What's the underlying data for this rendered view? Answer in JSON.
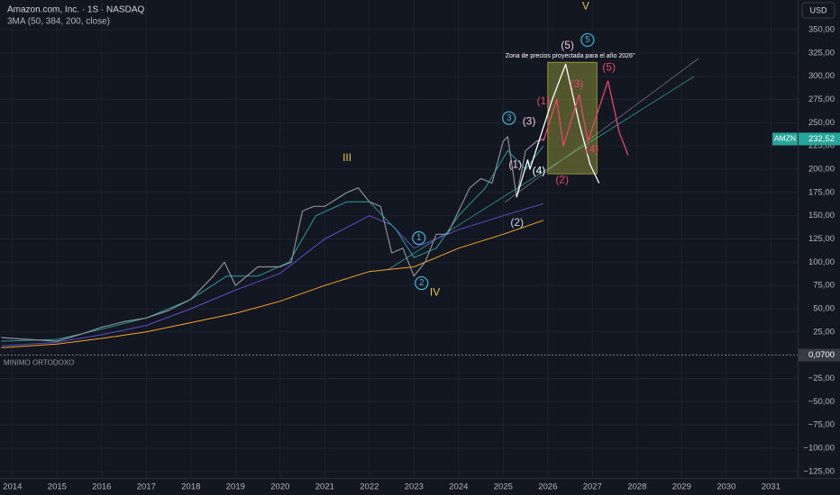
{
  "chart_data": {
    "type": "line",
    "title": "Amazon.com, Inc. · 1S · NASDAQ",
    "subtitle": "3MA (50, 384, 200, close)",
    "currency": "USD",
    "xlim": [
      2013.72,
      2031.6
    ],
    "ylim": [
      -132,
      382
    ],
    "xticks": [
      2014,
      2015,
      2016,
      2017,
      2018,
      2019,
      2020,
      2021,
      2022,
      2023,
      2024,
      2025,
      2026,
      2027,
      2028,
      2029,
      2030,
      2031
    ],
    "yticks": [
      {
        "value": 350,
        "label": "350,00"
      },
      {
        "value": 325,
        "label": "325,00"
      },
      {
        "value": 300,
        "label": "300,00"
      },
      {
        "value": 275,
        "label": "275,00"
      },
      {
        "value": 250,
        "label": "250,00"
      },
      {
        "value": 225,
        "label": "225,00"
      },
      {
        "value": 200,
        "label": "200,00"
      },
      {
        "value": 175,
        "label": "175,00"
      },
      {
        "value": 150,
        "label": "150,00"
      },
      {
        "value": 125,
        "label": "125,00"
      },
      {
        "value": 100,
        "label": "100,00"
      },
      {
        "value": 75,
        "label": "75,00"
      },
      {
        "value": 50,
        "label": "50,00"
      },
      {
        "value": 25,
        "label": "25,00"
      },
      {
        "value": -25,
        "label": "−25,00"
      },
      {
        "value": -50,
        "label": "−50,00"
      },
      {
        "value": -75,
        "label": "−75,00"
      },
      {
        "value": -100,
        "label": "−100,00"
      },
      {
        "value": -125,
        "label": "−125,00"
      }
    ],
    "grid": true,
    "series": [
      {
        "color": "#f5a623",
        "width": 1,
        "x": [
          2013.75,
          2015,
          2016,
          2017,
          2018,
          2019,
          2020,
          2021,
          2022,
          2023,
          2024,
          2025,
          2025.9
        ],
        "values": [
          8,
          12,
          18,
          25,
          35,
          45,
          58,
          75,
          90,
          95,
          115,
          130,
          145
        ]
      },
      {
        "color": "#5b4fc9",
        "width": 1,
        "x": [
          2013.75,
          2015,
          2016,
          2017,
          2018,
          2019,
          2020,
          2021,
          2022,
          2022.5,
          2023,
          2024,
          2025,
          2025.9
        ],
        "values": [
          10,
          14,
          22,
          32,
          50,
          70,
          88,
          125,
          150,
          140,
          115,
          135,
          150,
          163
        ]
      },
      {
        "color": "#2a9d9a",
        "width": 1,
        "x": [
          2013.75,
          2015,
          2016,
          2017,
          2018,
          2018.8,
          2019.5,
          2020.2,
          2020.8,
          2021.5,
          2022,
          2022.6,
          2023,
          2023.5,
          2024,
          2024.6,
          2025.1,
          2025.5,
          2025.9
        ],
        "values": [
          15,
          17,
          28,
          40,
          60,
          85,
          85,
          100,
          150,
          165,
          165,
          135,
          105,
          115,
          150,
          180,
          220,
          200,
          225
        ]
      },
      {
        "color": "#8a8f98",
        "width": 1.2,
        "x": [
          2013.75,
          2014,
          2015,
          2015.5,
          2016,
          2016.5,
          2017,
          2017.5,
          2018,
          2018.5,
          2018.75,
          2019,
          2019.5,
          2020,
          2020.25,
          2020.5,
          2020.75,
          2021,
          2021.5,
          2021.75,
          2022,
          2022.25,
          2022.5,
          2022.75,
          2023,
          2023.25,
          2023.5,
          2023.75,
          2024,
          2024.25,
          2024.5,
          2024.75,
          2025,
          2025.1,
          2025.3,
          2025.5,
          2025.75,
          2025.9
        ],
        "values": [
          19,
          18,
          15,
          22,
          30,
          36,
          40,
          48,
          60,
          85,
          100,
          75,
          95,
          95,
          100,
          155,
          160,
          160,
          175,
          180,
          165,
          160,
          110,
          115,
          85,
          100,
          130,
          130,
          155,
          180,
          190,
          185,
          230,
          235,
          170,
          220,
          230,
          232.52
        ]
      },
      {
        "color": "#ffffff",
        "width": 1.3,
        "x": [
          2025.3,
          2025.55,
          2025.6,
          2025.9,
          2026.1,
          2026.4,
          2026.7,
          2026.95,
          2027.15
        ],
        "values": [
          170,
          210,
          200,
          245,
          275,
          313,
          250,
          205,
          185
        ]
      },
      {
        "color": "#e8466c",
        "width": 1.3,
        "x": [
          2025.9,
          2026.2,
          2026.35,
          2026.7,
          2026.9,
          2027.35,
          2027.6,
          2027.8
        ],
        "values": [
          230,
          275,
          225,
          280,
          230,
          295,
          240,
          215
        ]
      }
    ],
    "zone": {
      "x": [
        2026.0,
        2027.1
      ],
      "y": [
        195,
        315
      ],
      "label": "Zona de precios proyectada para el año 2026\"",
      "label_x": 2026.5,
      "label_y": 322
    },
    "annotations": [
      {
        "text": "V",
        "x": 2026.85,
        "y": 375,
        "color": "#e5c64a",
        "circle": false
      },
      {
        "text": "III",
        "x": 2021.5,
        "y": 212,
        "color": "#e5c64a",
        "circle": false
      },
      {
        "text": "IV",
        "x": 2023.47,
        "y": 67,
        "color": "#e5c64a",
        "circle": false
      },
      {
        "text": "1",
        "x": 2023.11,
        "y": 126,
        "color": "#3fb8d6",
        "circle": true
      },
      {
        "text": "2",
        "x": 2023.17,
        "y": 77.5,
        "color": "#3fb8d6",
        "circle": true
      },
      {
        "text": "3",
        "x": 2025.13,
        "y": 255,
        "color": "#3fb8d6",
        "circle": true
      },
      {
        "text": "5",
        "x": 2026.89,
        "y": 339,
        "color": "#3fb8d6",
        "circle": true
      },
      {
        "text": "(5)",
        "x": 2026.44,
        "y": 333,
        "color": "#f4c6e0",
        "circle": false
      },
      {
        "text": "(3)",
        "x": 2025.58,
        "y": 251,
        "color": "#f4c6e0",
        "circle": false
      },
      {
        "text": "(1)",
        "x": 2025.27,
        "y": 204.5,
        "color": "#f4c6e0",
        "circle": false
      },
      {
        "text": "(4)",
        "x": 2025.8,
        "y": 197.6,
        "color": "#ffffff",
        "circle": false
      },
      {
        "text": "(2)",
        "x": 2025.31,
        "y": 142,
        "color": "#c9d6f2",
        "circle": false
      },
      {
        "text": "(1)",
        "x": 2025.9,
        "y": 273,
        "color": "#e8466c",
        "circle": false
      },
      {
        "text": "(3)",
        "x": 2026.65,
        "y": 291,
        "color": "#e8466c",
        "circle": false
      },
      {
        "text": "(5)",
        "x": 2027.37,
        "y": 309,
        "color": "#e8466c",
        "circle": false
      },
      {
        "text": "(4)",
        "x": 2026.99,
        "y": 221,
        "color": "#e8466c",
        "circle": false
      },
      {
        "text": "(2)",
        "x": 2026.32,
        "y": 188,
        "color": "#e8466c",
        "circle": false
      }
    ],
    "hline": {
      "value": 0.07,
      "label": "0,0700",
      "note": "MINIMO ORTODOXO"
    },
    "last_price": {
      "name": "AMZN",
      "value": 232.52,
      "label": "232,52"
    }
  }
}
